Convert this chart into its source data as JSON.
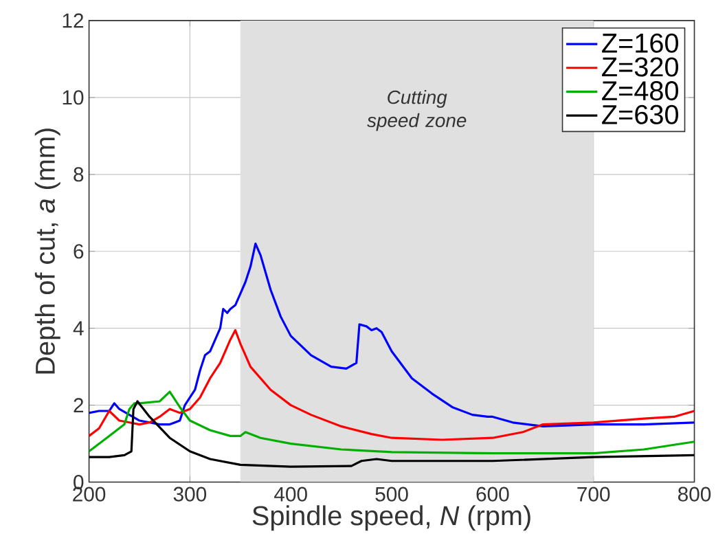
{
  "chart_data": {
    "type": "line",
    "xlabel": "Spindle speed, *N* (rpm)",
    "ylabel": "Depth of cut, *a* (mm)",
    "xlim": [
      200,
      800
    ],
    "ylim": [
      0,
      12
    ],
    "xticks": [
      200,
      300,
      400,
      500,
      600,
      700,
      800
    ],
    "yticks": [
      0,
      2,
      4,
      6,
      8,
      10,
      12
    ],
    "grid": true,
    "legend": "top right",
    "marker": "none",
    "line_style": "solid",
    "bands": [
      {
        "axis": "x",
        "from": 350,
        "to": 700,
        "label": "Cutting speed zone",
        "color": "#e0e0e0"
      }
    ],
    "series": [
      {
        "name": "Z=160",
        "color": "#0000ff",
        "x": [
          200,
          210,
          220,
          225,
          230,
          240,
          250,
          260,
          270,
          280,
          290,
          295,
          300,
          305,
          310,
          315,
          320,
          325,
          330,
          333,
          337,
          340,
          345,
          350,
          355,
          360,
          365,
          370,
          380,
          390,
          400,
          420,
          440,
          455,
          465,
          468,
          475,
          480,
          485,
          490,
          500,
          520,
          540,
          560,
          580,
          595,
          600,
          620,
          650,
          700,
          750,
          800
        ],
        "values": [
          1.8,
          1.85,
          1.85,
          2.05,
          1.9,
          1.75,
          1.6,
          1.55,
          1.5,
          1.5,
          1.6,
          2.0,
          2.2,
          2.4,
          2.9,
          3.3,
          3.4,
          3.7,
          4.0,
          4.5,
          4.4,
          4.5,
          4.6,
          4.9,
          5.2,
          5.6,
          6.2,
          5.9,
          5.0,
          4.3,
          3.8,
          3.3,
          3.0,
          2.95,
          3.1,
          4.1,
          4.05,
          3.95,
          4.0,
          3.9,
          3.4,
          2.7,
          2.3,
          1.95,
          1.75,
          1.7,
          1.7,
          1.55,
          1.45,
          1.5,
          1.5,
          1.55
        ]
      },
      {
        "name": "Z=320",
        "color": "#ff0000",
        "x": [
          200,
          210,
          220,
          230,
          240,
          250,
          260,
          270,
          280,
          290,
          300,
          310,
          320,
          330,
          340,
          345,
          350,
          360,
          380,
          400,
          420,
          450,
          480,
          500,
          550,
          600,
          630,
          650,
          700,
          750,
          780,
          800
        ],
        "values": [
          1.2,
          1.4,
          1.85,
          1.6,
          1.55,
          1.5,
          1.55,
          1.7,
          1.9,
          1.8,
          1.9,
          2.2,
          2.7,
          3.1,
          3.7,
          3.95,
          3.6,
          3.0,
          2.4,
          2.0,
          1.75,
          1.45,
          1.25,
          1.15,
          1.1,
          1.15,
          1.3,
          1.5,
          1.55,
          1.65,
          1.7,
          1.85
        ]
      },
      {
        "name": "Z=480",
        "color": "#00b000",
        "x": [
          200,
          220,
          235,
          240,
          245,
          250,
          270,
          280,
          290,
          300,
          320,
          340,
          350,
          355,
          370,
          400,
          450,
          500,
          600,
          700,
          750,
          800
        ],
        "values": [
          0.8,
          1.2,
          1.5,
          1.9,
          2.05,
          2.05,
          2.1,
          2.35,
          1.95,
          1.6,
          1.35,
          1.2,
          1.2,
          1.3,
          1.15,
          1.0,
          0.85,
          0.78,
          0.75,
          0.75,
          0.85,
          1.05
        ]
      },
      {
        "name": "Z=630",
        "color": "#000000",
        "x": [
          200,
          220,
          235,
          242,
          244,
          248,
          260,
          280,
          300,
          320,
          350,
          400,
          460,
          470,
          485,
          500,
          600,
          700,
          800
        ],
        "values": [
          0.65,
          0.65,
          0.7,
          0.8,
          1.9,
          2.1,
          1.7,
          1.15,
          0.8,
          0.6,
          0.45,
          0.4,
          0.42,
          0.55,
          0.6,
          0.55,
          0.55,
          0.65,
          0.7
        ]
      }
    ]
  }
}
